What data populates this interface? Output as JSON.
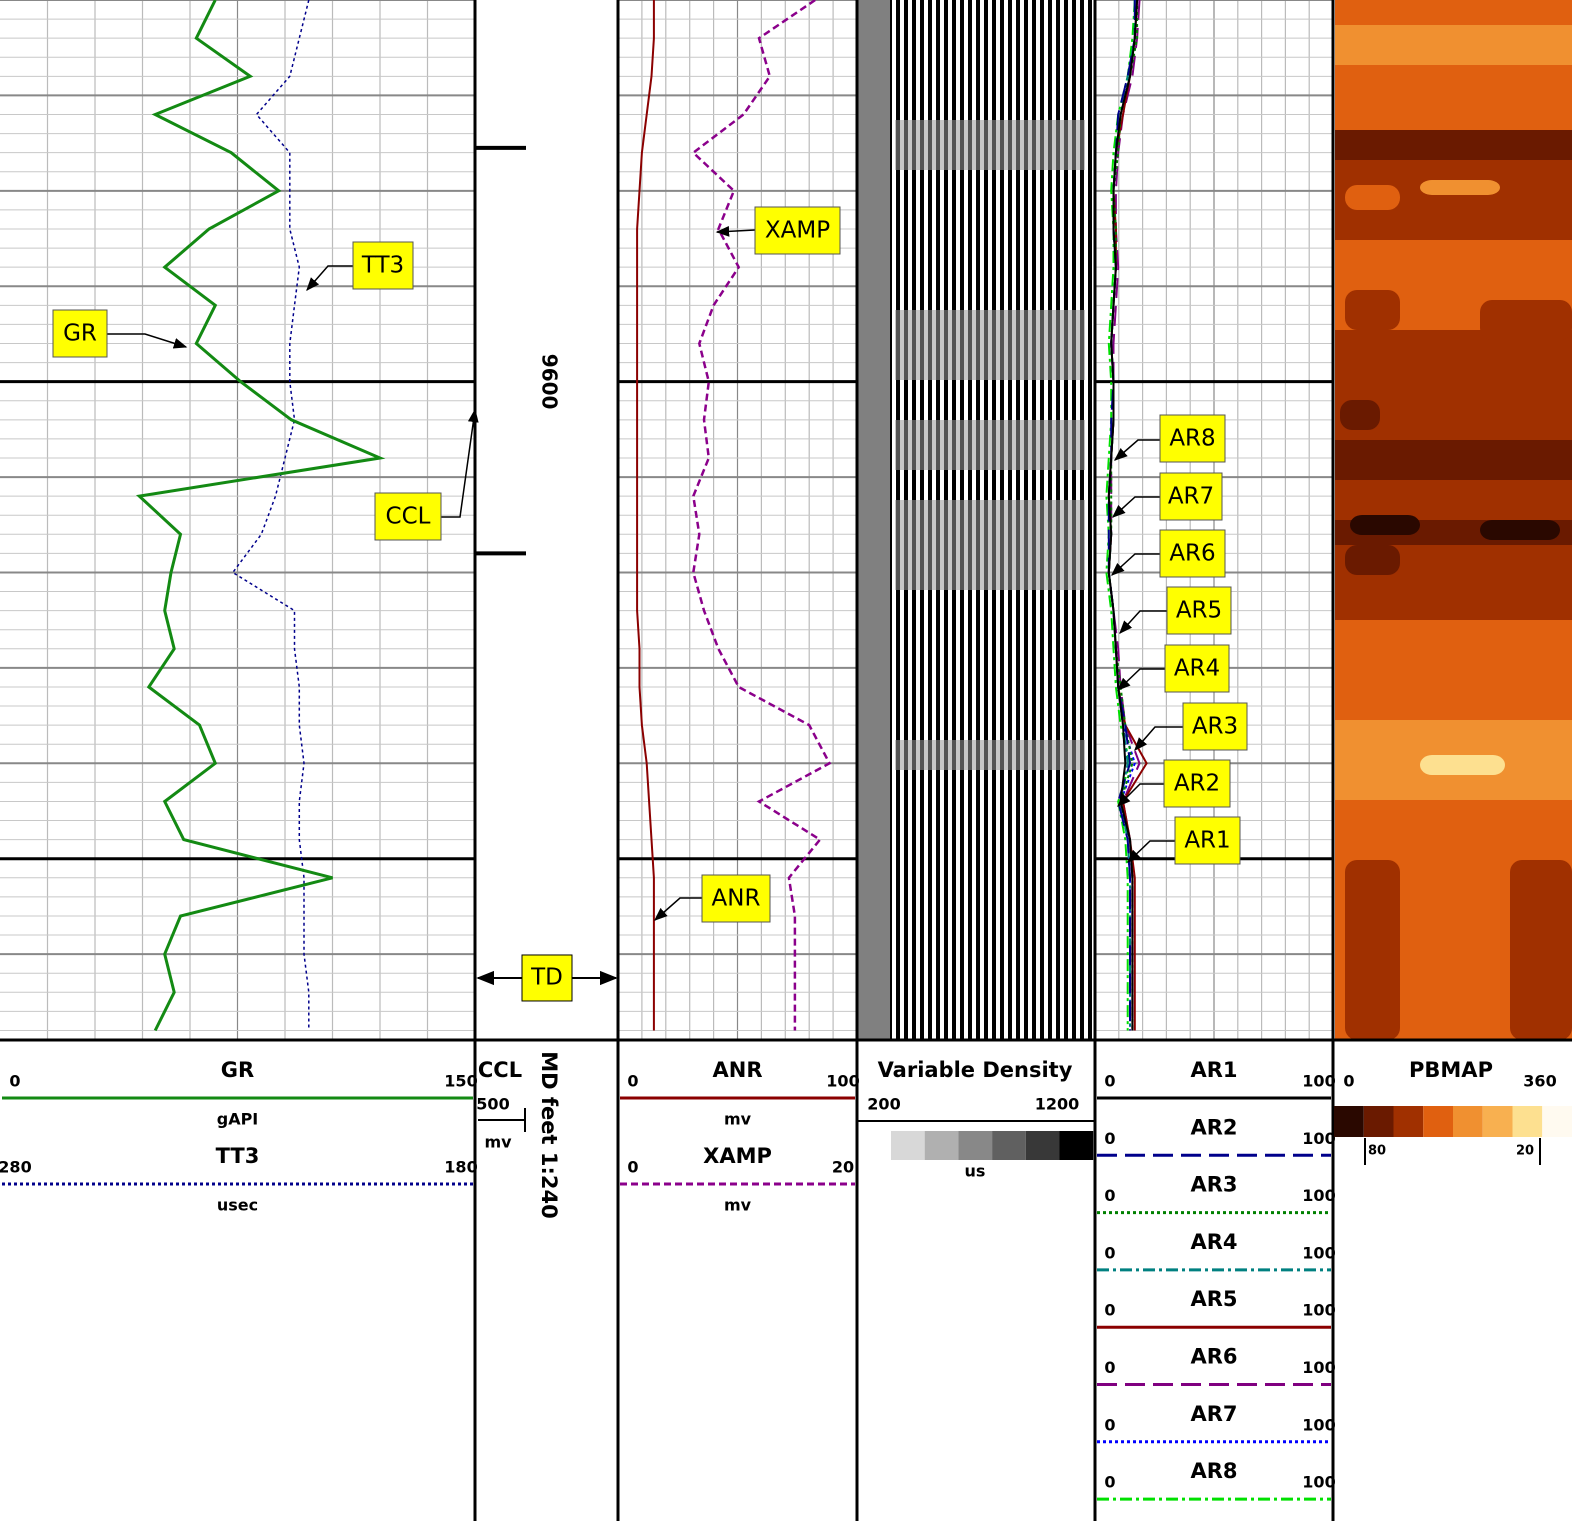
{
  "depth": {
    "lim": [
      9520,
      9738
    ],
    "label": 9600,
    "scale_text": "MD feet 1:240",
    "grid_ft": [
      4,
      20,
      100
    ],
    "values": [
      9520,
      9528,
      9536,
      9544,
      9552,
      9560,
      9568,
      9576,
      9584,
      9592,
      9600,
      9608,
      9616,
      9624,
      9632,
      9640,
      9648,
      9656,
      9664,
      9672,
      9680,
      9688,
      9696,
      9704,
      9712,
      9720,
      9728,
      9736
    ]
  },
  "gr_track": {
    "curves": [
      {
        "name": "GR",
        "unit": "gAPI",
        "scale": [
          0,
          150
        ],
        "color": "#138a13",
        "dash": "solid",
        "values": [
          68,
          62,
          79,
          49,
          73,
          88,
          66,
          52,
          68,
          62,
          76,
          92,
          120,
          44,
          57,
          54,
          52,
          55,
          47,
          63,
          68,
          52,
          58,
          105,
          57,
          52,
          55,
          49
        ]
      },
      {
        "name": "TT3",
        "unit": "usec",
        "scale": [
          280,
          180
        ],
        "color": "#00008b",
        "dash": "dotted",
        "values": [
          215,
          217,
          219,
          226,
          219,
          219,
          219,
          217,
          218,
          219,
          219,
          218,
          220,
          222,
          225,
          231,
          218,
          218,
          217,
          217,
          216,
          217,
          217,
          216,
          216,
          216,
          215,
          215
        ]
      }
    ]
  },
  "ccl_track": {
    "name": "CCL",
    "unit": "mv",
    "scale": 500,
    "collars": [
      9551,
      9636
    ],
    "td": {
      "label": "TD",
      "depth": 9725
    }
  },
  "amp_track": {
    "curves": [
      {
        "name": "ANR",
        "unit": "mv",
        "scale": [
          0,
          100
        ],
        "color": "#8b0000",
        "dash": "solid",
        "values": [
          15,
          15,
          14,
          12,
          10,
          9,
          8,
          8,
          8,
          8,
          8,
          8,
          8,
          8,
          8,
          8,
          8,
          9,
          9,
          10,
          12,
          13,
          14,
          15,
          15,
          15,
          15,
          15
        ]
      },
      {
        "name": "XAMP",
        "unit": "mv",
        "scale": [
          0,
          20
        ],
        "color": "#8b008b",
        "dash": "dashed",
        "values": [
          16.5,
          11.8,
          12.7,
          10.5,
          6.3,
          9.7,
          8.4,
          10.1,
          8,
          6.8,
          7.6,
          7.2,
          7.6,
          6.3,
          6.8,
          6.3,
          7.2,
          8.4,
          10.1,
          16,
          17.7,
          11.8,
          16.9,
          14.3,
          14.8,
          14.8,
          14.8,
          14.8
        ]
      }
    ]
  },
  "vd_track": {
    "name": "Variable Density",
    "scale": [
      200,
      1200
    ],
    "unit": "us",
    "colors": [
      "#d8d8d8",
      "#b0b0b0",
      "#888888",
      "#606060",
      "#383838",
      "#000000"
    ]
  },
  "ar_track": {
    "curves": [
      {
        "name": "AR1",
        "scale": [
          0,
          100
        ],
        "color": "#000000",
        "dash": "solid",
        "values": [
          17,
          16,
          14,
          10,
          8,
          7,
          7,
          8,
          7,
          6,
          7,
          7,
          6,
          5,
          6,
          5,
          7,
          8,
          9,
          11,
          12,
          10,
          14,
          15,
          15,
          15,
          15,
          15
        ]
      },
      {
        "name": "AR2",
        "scale": [
          0,
          100
        ],
        "color": "#00008b",
        "dash": "longdash",
        "values": [
          16,
          16,
          13,
          9,
          8,
          7,
          7,
          8,
          7,
          6,
          7,
          6,
          6,
          5,
          5,
          5,
          7,
          8,
          9,
          12,
          14,
          9,
          13,
          14,
          14,
          14,
          14,
          14
        ]
      },
      {
        "name": "AR3",
        "scale": [
          0,
          100
        ],
        "color": "#008000",
        "dash": "dotted",
        "values": [
          17,
          17,
          14,
          10,
          9,
          7,
          8,
          8,
          7,
          6,
          7,
          7,
          6,
          6,
          6,
          5,
          7,
          8,
          10,
          12,
          15,
          10,
          14,
          15,
          15,
          15,
          15,
          15
        ]
      },
      {
        "name": "AR4",
        "scale": [
          0,
          100
        ],
        "color": "#008080",
        "dash": "dashdot",
        "values": [
          16,
          16,
          13,
          10,
          8,
          7,
          7,
          8,
          7,
          6,
          7,
          7,
          6,
          5,
          6,
          5,
          7,
          8,
          9,
          11,
          13,
          10,
          13,
          14,
          14,
          14,
          14,
          14
        ]
      },
      {
        "name": "AR5",
        "scale": [
          0,
          100
        ],
        "color": "#8b0000",
        "dash": "solid",
        "values": [
          17,
          16,
          14,
          11,
          8,
          7,
          8,
          8,
          7,
          6,
          7,
          7,
          6,
          5,
          6,
          5,
          7,
          8,
          9,
          12,
          21,
          11,
          14,
          16,
          16,
          16,
          16,
          16
        ]
      },
      {
        "name": "AR6",
        "scale": [
          0,
          100
        ],
        "color": "#800080",
        "dash": "longdash",
        "values": [
          18,
          17,
          15,
          11,
          9,
          8,
          8,
          9,
          8,
          7,
          7,
          7,
          6,
          6,
          6,
          5,
          7,
          9,
          10,
          12,
          18,
          11,
          14,
          15,
          15,
          15,
          15,
          15
        ]
      },
      {
        "name": "AR7",
        "scale": [
          0,
          100
        ],
        "color": "#0000ff",
        "dash": "dotted",
        "values": [
          17,
          16,
          14,
          10,
          8,
          7,
          7,
          8,
          7,
          6,
          7,
          7,
          6,
          5,
          6,
          5,
          7,
          8,
          9,
          11,
          16,
          10,
          13,
          14,
          14,
          14,
          14,
          14
        ]
      },
      {
        "name": "AR8",
        "scale": [
          0,
          100
        ],
        "color": "#00e000",
        "dash": "dashdot",
        "values": [
          16,
          15,
          13,
          9,
          7,
          6,
          7,
          7,
          6,
          5,
          6,
          6,
          5,
          4,
          5,
          4,
          6,
          7,
          8,
          10,
          14,
          9,
          12,
          13,
          13,
          13,
          13,
          13
        ]
      }
    ]
  },
  "pbmap_track": {
    "name": "PBMAP",
    "scale": [
      0,
      360
    ],
    "colorbar_labels": [
      80,
      20
    ],
    "colors": [
      "#2a0800",
      "#6a1a00",
      "#a03000",
      "#e06010",
      "#f09030",
      "#f8b050",
      "#fde090",
      "#fffaf0"
    ]
  },
  "annotations": [
    "GR",
    "TT3",
    "CCL",
    "XAMP",
    "ANR",
    "AR8",
    "AR7",
    "AR6",
    "AR5",
    "AR4",
    "AR3",
    "AR2",
    "AR1"
  ]
}
